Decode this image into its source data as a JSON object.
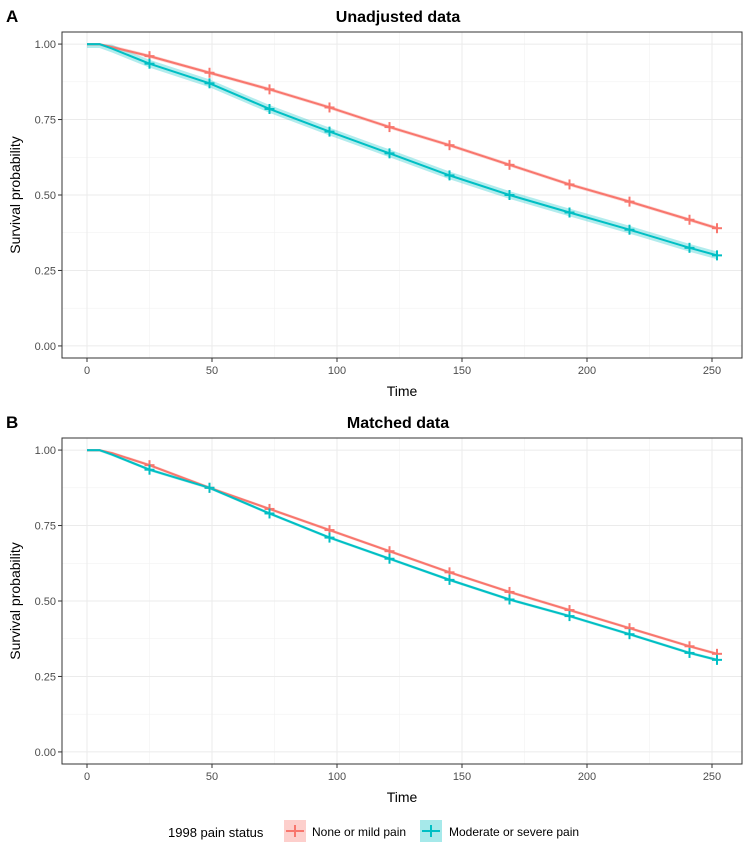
{
  "chart_data": [
    {
      "type": "line",
      "panel_tag": "A",
      "title": "Unadjusted data",
      "xlabel": "Time",
      "ylabel": "Survival probability",
      "xlim": [
        -10,
        262
      ],
      "ylim": [
        -0.04,
        1.04
      ],
      "xticks": [
        0,
        50,
        100,
        150,
        200,
        250
      ],
      "xtick_labels": [
        "0",
        "50",
        "100",
        "150",
        "200",
        "250"
      ],
      "yticks": [
        0,
        0.25,
        0.5,
        0.75,
        1
      ],
      "ytick_labels": [
        "0.00",
        "0.25",
        "0.50",
        "0.75",
        "1.00"
      ],
      "grid": true,
      "series": [
        {
          "name": "None or mild pain",
          "color": "#F8766D",
          "x": [
            0,
            5,
            10,
            25,
            49,
            73,
            97,
            121,
            145,
            169,
            193,
            217,
            241,
            252
          ],
          "y": [
            1.0,
            1.0,
            0.99,
            0.96,
            0.905,
            0.85,
            0.79,
            0.725,
            0.665,
            0.6,
            0.535,
            0.478,
            0.418,
            0.39
          ],
          "censor_x": [
            25,
            49,
            73,
            97,
            121,
            145,
            169,
            193,
            217,
            241,
            252
          ],
          "censor_y": [
            0.96,
            0.905,
            0.85,
            0.79,
            0.725,
            0.665,
            0.6,
            0.535,
            0.478,
            0.418,
            0.39
          ],
          "band": 0.006
        },
        {
          "name": "Moderate or severe pain",
          "color": "#00BFC4",
          "x": [
            0,
            5,
            10,
            25,
            49,
            73,
            97,
            121,
            145,
            169,
            193,
            217,
            241,
            252
          ],
          "y": [
            1.0,
            1.0,
            0.985,
            0.935,
            0.87,
            0.785,
            0.71,
            0.638,
            0.565,
            0.5,
            0.442,
            0.385,
            0.325,
            0.3
          ],
          "censor_x": [
            25,
            49,
            73,
            97,
            121,
            145,
            169,
            193,
            217,
            241,
            252
          ],
          "censor_y": [
            0.935,
            0.87,
            0.785,
            0.71,
            0.638,
            0.565,
            0.5,
            0.442,
            0.385,
            0.325,
            0.3
          ],
          "band": 0.013
        }
      ]
    },
    {
      "type": "line",
      "panel_tag": "B",
      "title": "Matched data",
      "xlabel": "Time",
      "ylabel": "Survival probability",
      "xlim": [
        -10,
        262
      ],
      "ylim": [
        -0.04,
        1.04
      ],
      "xticks": [
        0,
        50,
        100,
        150,
        200,
        250
      ],
      "xtick_labels": [
        "0",
        "50",
        "100",
        "150",
        "200",
        "250"
      ],
      "yticks": [
        0,
        0.25,
        0.5,
        0.75,
        1
      ],
      "ytick_labels": [
        "0.00",
        "0.25",
        "0.50",
        "0.75",
        "1.00"
      ],
      "grid": true,
      "series": [
        {
          "name": "None or mild pain",
          "color": "#F8766D",
          "x": [
            0,
            5,
            10,
            25,
            49,
            73,
            97,
            121,
            145,
            169,
            193,
            217,
            241,
            252
          ],
          "y": [
            1.0,
            1.0,
            0.99,
            0.95,
            0.875,
            0.805,
            0.735,
            0.665,
            0.595,
            0.53,
            0.47,
            0.41,
            0.35,
            0.325
          ],
          "censor_x": [
            25,
            49,
            73,
            97,
            121,
            145,
            169,
            193,
            217,
            241,
            252
          ],
          "censor_y": [
            0.95,
            0.875,
            0.805,
            0.735,
            0.665,
            0.595,
            0.53,
            0.47,
            0.41,
            0.35,
            0.325
          ],
          "band": 0.005
        },
        {
          "name": "Moderate or severe pain",
          "color": "#00BFC4",
          "x": [
            0,
            5,
            10,
            25,
            49,
            73,
            97,
            121,
            145,
            169,
            193,
            217,
            241,
            252
          ],
          "y": [
            1.0,
            1.0,
            0.985,
            0.935,
            0.875,
            0.79,
            0.71,
            0.64,
            0.57,
            0.505,
            0.45,
            0.39,
            0.328,
            0.305
          ],
          "censor_x": [
            25,
            49,
            73,
            97,
            121,
            145,
            169,
            193,
            217,
            241,
            252
          ],
          "censor_y": [
            0.935,
            0.875,
            0.79,
            0.71,
            0.64,
            0.57,
            0.505,
            0.45,
            0.39,
            0.328,
            0.305
          ],
          "band": 0.005
        }
      ]
    }
  ],
  "legend": {
    "title": "1998 pain status",
    "items": [
      {
        "label": "None or mild pain",
        "color": "#F8766D"
      },
      {
        "label": "Moderate or severe pain",
        "color": "#00BFC4"
      }
    ]
  }
}
